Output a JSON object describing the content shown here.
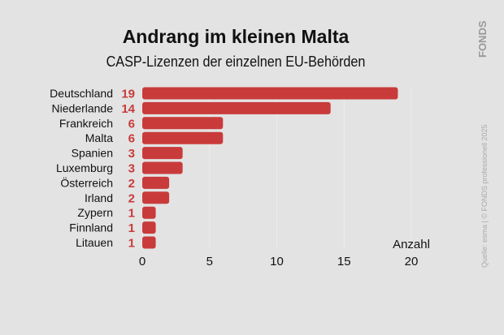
{
  "chart_data": {
    "type": "bar",
    "orientation": "horizontal",
    "title": "Andrang im kleinen Malta",
    "subtitle": "CASP-Lizenzen der einzelnen EU-Behörden",
    "categories": [
      "Deutschland",
      "Niederlande",
      "Frankreich",
      "Malta",
      "Spanien",
      "Luxemburg",
      "Österreich",
      "Irland",
      "Zypern",
      "Finnland",
      "Litauen"
    ],
    "values": [
      19,
      14,
      6,
      6,
      3,
      3,
      2,
      2,
      1,
      1,
      1
    ],
    "xlabel": "Anzahl",
    "xlim": [
      0,
      20
    ],
    "xticks": [
      "0",
      "5",
      "10",
      "15",
      "20"
    ],
    "grid": true,
    "bar_color": "#c93b3b",
    "value_label_color": "#c93b3b"
  },
  "branding": {
    "logo": "FONDS",
    "source": "Quelle: esma  |  © FONDS professionell 2025"
  }
}
